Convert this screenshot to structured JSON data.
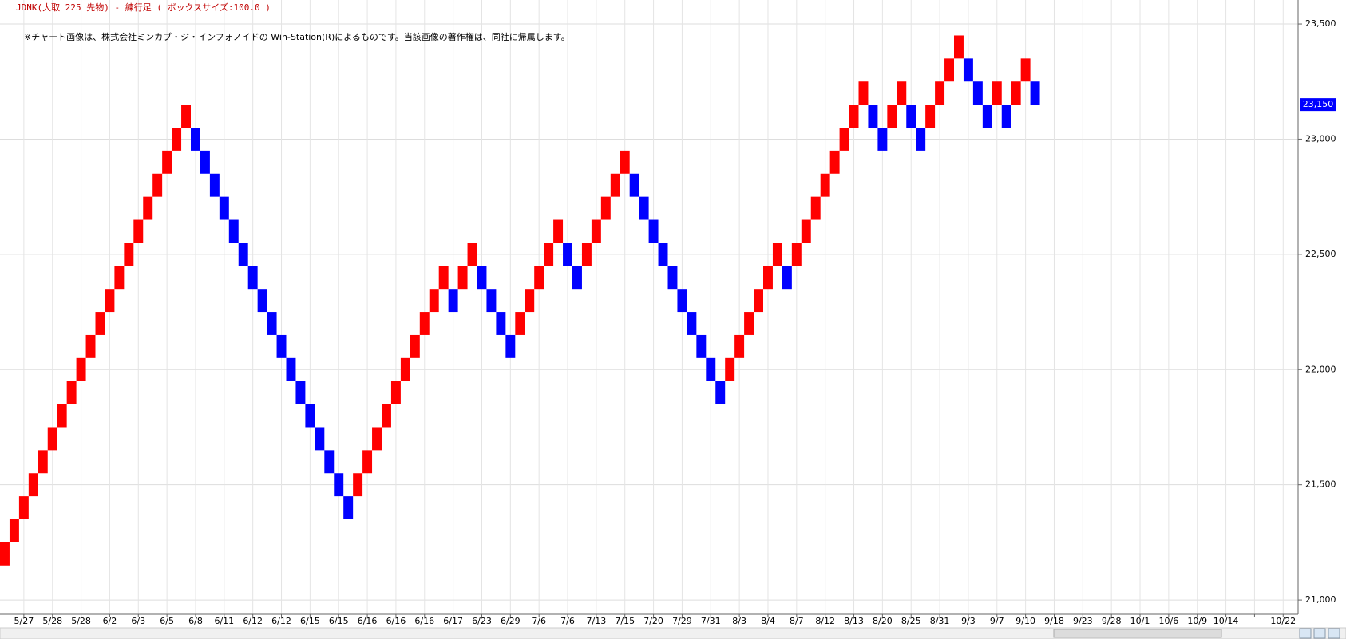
{
  "chart_data": {
    "type": "renko",
    "title": "JDNK(大取 225 先物) - 練行足 ( ボックスサイズ:100.0 )",
    "note": "※チャート画像は、株式会社ミンカブ・ジ・インフォノイドの Win-Station(R)によるものです。当該画像の著作権は、同社に帰属します。",
    "up_color": "#ff0000",
    "down_color": "#0000ff",
    "opens": [
      21150,
      21250,
      21350,
      21450,
      21550,
      21650,
      21750,
      21850,
      21950,
      22050,
      22150,
      22250,
      22350,
      22450,
      22550,
      22650,
      22750,
      22850,
      22950,
      23050,
      23050,
      22950,
      22850,
      22750,
      22650,
      22550,
      22450,
      22350,
      22250,
      22150,
      22050,
      21950,
      21850,
      21750,
      21650,
      21550,
      21450,
      21450,
      21550,
      21650,
      21750,
      21850,
      21950,
      22050,
      22150,
      22250,
      22350,
      22350,
      22350,
      22450,
      22450,
      22350,
      22250,
      22150,
      22150,
      22250,
      22350,
      22450,
      22550,
      22550,
      22450,
      22450,
      22550,
      22650,
      22750,
      22850,
      22850,
      22750,
      22650,
      22550,
      22450,
      22350,
      22250,
      22150,
      22050,
      21950,
      21950,
      22050,
      22150,
      22250,
      22350,
      22450,
      22450,
      22450,
      22550,
      22650,
      22750,
      22850,
      22950,
      23050,
      23150,
      23150,
      23050,
      23050,
      23150,
      23150,
      23050,
      23050,
      23150,
      23250,
      23350,
      23350,
      23250,
      23150,
      23150,
      23150,
      23150,
      23250,
      23250
    ],
    "closes": [
      21250,
      21350,
      21450,
      21550,
      21650,
      21750,
      21850,
      21950,
      22050,
      22150,
      22250,
      22350,
      22450,
      22550,
      22650,
      22750,
      22850,
      22950,
      23050,
      23150,
      22950,
      22850,
      22750,
      22650,
      22550,
      22450,
      22350,
      22250,
      22150,
      22050,
      21950,
      21850,
      21750,
      21650,
      21550,
      21450,
      21350,
      21550,
      21650,
      21750,
      21850,
      21950,
      22050,
      22150,
      22250,
      22350,
      22450,
      22250,
      22450,
      22550,
      22350,
      22250,
      22150,
      22050,
      22250,
      22350,
      22450,
      22550,
      22650,
      22450,
      22350,
      22550,
      22650,
      22750,
      22850,
      22950,
      22750,
      22650,
      22550,
      22450,
      22350,
      22250,
      22150,
      22050,
      21950,
      21850,
      22050,
      22150,
      22250,
      22350,
      22450,
      22550,
      22350,
      22550,
      22650,
      22750,
      22850,
      22950,
      23050,
      23150,
      23250,
      23050,
      22950,
      23150,
      23250,
      23050,
      22950,
      23150,
      23250,
      23350,
      23450,
      23250,
      23150,
      23050,
      23250,
      23050,
      23250,
      23350,
      23150
    ],
    "x_labels": [
      "5/27",
      "5/28",
      "5/28",
      "6/2",
      "6/3",
      "6/5",
      "6/8",
      "6/11",
      "6/12",
      "6/12",
      "6/15",
      "6/15",
      "6/16",
      "6/16",
      "6/16",
      "6/17",
      "6/23",
      "6/29",
      "7/6",
      "7/6",
      "7/13",
      "7/15",
      "7/20",
      "7/29",
      "7/31",
      "8/3",
      "8/4",
      "8/7",
      "8/12",
      "8/13",
      "8/20",
      "8/25",
      "8/31",
      "9/3",
      "9/7",
      "9/10",
      "9/18",
      "9/23",
      "9/28",
      "10/1",
      "10/6",
      "10/9",
      "10/14",
      null,
      "10/22"
    ],
    "ylim": [
      20938,
      23604
    ],
    "yticks": [
      {
        "value": 21000,
        "label": "21,000"
      },
      {
        "value": 21500,
        "label": "21,500"
      },
      {
        "value": 22000,
        "label": "22,000"
      },
      {
        "value": 22500,
        "label": "22,500"
      },
      {
        "value": 23000,
        "label": "23,000"
      },
      {
        "value": 23500,
        "label": "23,500"
      }
    ],
    "last_price": {
      "value": 23150,
      "label": "23,150"
    },
    "grid": true
  }
}
